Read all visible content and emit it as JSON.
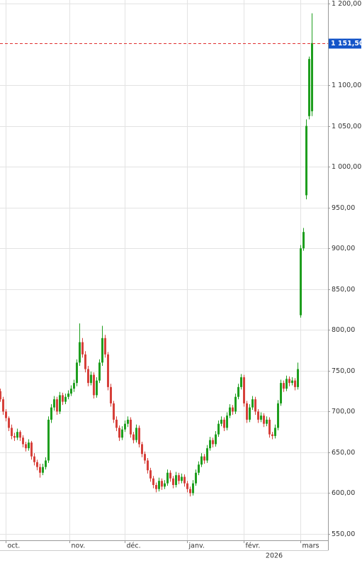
{
  "chart_data": {
    "type": "candlestick",
    "ylim": [
      542.2,
      1204.3
    ],
    "yticks": [
      {
        "value": 550,
        "label": "550,00"
      },
      {
        "value": 600,
        "label": "600,00"
      },
      {
        "value": 650,
        "label": "650,00"
      },
      {
        "value": 700,
        "label": "700,00"
      },
      {
        "value": 750,
        "label": "750,00"
      },
      {
        "value": 800,
        "label": "800,00"
      },
      {
        "value": 850,
        "label": "850,00"
      },
      {
        "value": 900,
        "label": "900,00"
      },
      {
        "value": 950,
        "label": "950,00"
      },
      {
        "value": 1000,
        "label": "1 000,00"
      },
      {
        "value": 1050,
        "label": "1 050,00"
      },
      {
        "value": 1100,
        "label": "1 100,00"
      },
      {
        "value": 1200,
        "label": "1 200,00"
      }
    ],
    "xlim": [
      0,
      115.75
    ],
    "xticks": [
      {
        "value": 2,
        "label": "oct."
      },
      {
        "value": 24.5,
        "label": "nov."
      },
      {
        "value": 44,
        "label": "déc."
      },
      {
        "value": 66,
        "label": "janv."
      },
      {
        "value": 86,
        "label": "févr."
      },
      {
        "value": 106,
        "label": "mars"
      }
    ],
    "year_label": "2026",
    "grid": true,
    "up_color": "#1e9e1e",
    "down_color": "#d6403a",
    "last_price": {
      "value": 1151.5,
      "label": "1 151,50"
    },
    "line_color": "#e03030",
    "label_color": "#1454c8",
    "x": [
      0,
      1,
      2,
      3,
      4,
      5,
      6,
      7,
      8,
      9,
      10,
      11,
      12,
      13,
      14,
      15,
      16,
      17,
      18,
      19,
      20,
      21,
      22,
      23,
      24,
      25,
      26,
      27,
      28,
      29,
      30,
      31,
      32,
      33,
      34,
      35,
      36,
      37,
      38,
      39,
      40,
      41,
      42,
      43,
      44,
      45,
      46,
      47,
      48,
      49,
      50,
      51,
      52,
      53,
      54,
      55,
      56,
      57,
      58,
      59,
      60,
      61,
      62,
      63,
      64,
      65,
      66,
      67,
      68,
      69,
      70,
      71,
      72,
      73,
      74,
      75,
      76,
      77,
      78,
      79,
      80,
      81,
      82,
      83,
      84,
      85,
      86,
      87,
      88,
      89,
      90,
      91,
      92,
      93,
      94,
      95,
      96,
      97,
      98,
      99,
      100,
      101,
      102,
      103,
      104,
      105,
      106,
      107,
      108,
      109,
      110
    ],
    "ohlc": [
      [
        725,
        728,
        712,
        715
      ],
      [
        715,
        718,
        696,
        700
      ],
      [
        700,
        703,
        688,
        692
      ],
      [
        692,
        694,
        676,
        680
      ],
      [
        680,
        684,
        666,
        670
      ],
      [
        670,
        674,
        664,
        668
      ],
      [
        668,
        679,
        665,
        675
      ],
      [
        675,
        677,
        664,
        668
      ],
      [
        668,
        671,
        656,
        660
      ],
      [
        660,
        663,
        651,
        655
      ],
      [
        655,
        666,
        652,
        662
      ],
      [
        662,
        664,
        641,
        645
      ],
      [
        645,
        649,
        634,
        638
      ],
      [
        638,
        641,
        628,
        632
      ],
      [
        632,
        636,
        619,
        625
      ],
      [
        625,
        636,
        622,
        632
      ],
      [
        632,
        644,
        629,
        640
      ],
      [
        640,
        694,
        637,
        690
      ],
      [
        690,
        709,
        686,
        705
      ],
      [
        705,
        719,
        701,
        715
      ],
      [
        715,
        718,
        696,
        700
      ],
      [
        700,
        724,
        697,
        720
      ],
      [
        720,
        723,
        708,
        712
      ],
      [
        712,
        722,
        709,
        718
      ],
      [
        718,
        726,
        715,
        722
      ],
      [
        722,
        732,
        719,
        728
      ],
      [
        728,
        739,
        724,
        735
      ],
      [
        735,
        764,
        731,
        760
      ],
      [
        760,
        808,
        756,
        785
      ],
      [
        785,
        790,
        766,
        770
      ],
      [
        770,
        774,
        748,
        752
      ],
      [
        752,
        756,
        731,
        735
      ],
      [
        735,
        749,
        732,
        745
      ],
      [
        745,
        748,
        716,
        720
      ],
      [
        720,
        742,
        717,
        738
      ],
      [
        738,
        764,
        735,
        760
      ],
      [
        760,
        805,
        756,
        790
      ],
      [
        790,
        794,
        766,
        770
      ],
      [
        770,
        773,
        726,
        730
      ],
      [
        730,
        734,
        706,
        710
      ],
      [
        710,
        713,
        686,
        690
      ],
      [
        690,
        694,
        676,
        680
      ],
      [
        680,
        683,
        664,
        668
      ],
      [
        668,
        682,
        665,
        678
      ],
      [
        678,
        689,
        675,
        685
      ],
      [
        685,
        694,
        681,
        690
      ],
      [
        690,
        693,
        668,
        672
      ],
      [
        672,
        675,
        661,
        665
      ],
      [
        665,
        684,
        662,
        680
      ],
      [
        680,
        683,
        656,
        660
      ],
      [
        660,
        663,
        644,
        648
      ],
      [
        648,
        651,
        636,
        640
      ],
      [
        640,
        643,
        624,
        628
      ],
      [
        628,
        631,
        614,
        618
      ],
      [
        618,
        621,
        606,
        610
      ],
      [
        610,
        613,
        601,
        605
      ],
      [
        605,
        619,
        602,
        615
      ],
      [
        615,
        618,
        604,
        608
      ],
      [
        608,
        616,
        605,
        612
      ],
      [
        612,
        629,
        609,
        625
      ],
      [
        625,
        628,
        614,
        618
      ],
      [
        618,
        621,
        606,
        610
      ],
      [
        610,
        626,
        607,
        622
      ],
      [
        622,
        625,
        611,
        615
      ],
      [
        615,
        624,
        612,
        620
      ],
      [
        620,
        623,
        608,
        612
      ],
      [
        612,
        615,
        601,
        605
      ],
      [
        605,
        608,
        596,
        600
      ],
      [
        600,
        616,
        597,
        612
      ],
      [
        612,
        629,
        609,
        625
      ],
      [
        625,
        639,
        622,
        635
      ],
      [
        635,
        649,
        632,
        645
      ],
      [
        645,
        648,
        636,
        640
      ],
      [
        640,
        659,
        637,
        655
      ],
      [
        655,
        669,
        652,
        665
      ],
      [
        665,
        668,
        656,
        660
      ],
      [
        660,
        676,
        657,
        672
      ],
      [
        672,
        689,
        669,
        685
      ],
      [
        685,
        694,
        682,
        690
      ],
      [
        690,
        693,
        676,
        680
      ],
      [
        680,
        699,
        677,
        695
      ],
      [
        695,
        709,
        692,
        705
      ],
      [
        705,
        708,
        696,
        700
      ],
      [
        700,
        722,
        697,
        718
      ],
      [
        718,
        734,
        715,
        730
      ],
      [
        730,
        746,
        727,
        742
      ],
      [
        742,
        745,
        706,
        710
      ],
      [
        710,
        713,
        686,
        690
      ],
      [
        690,
        709,
        687,
        705
      ],
      [
        705,
        719,
        702,
        715
      ],
      [
        715,
        718,
        696,
        700
      ],
      [
        700,
        703,
        686,
        690
      ],
      [
        690,
        699,
        687,
        695
      ],
      [
        695,
        698,
        681,
        685
      ],
      [
        685,
        694,
        682,
        690
      ],
      [
        690,
        693,
        668,
        672
      ],
      [
        672,
        675,
        666,
        670
      ],
      [
        670,
        684,
        667,
        680
      ],
      [
        680,
        714,
        677,
        710
      ],
      [
        710,
        739,
        707,
        735
      ],
      [
        735,
        738,
        724,
        728
      ],
      [
        728,
        744,
        725,
        740
      ],
      [
        740,
        743,
        731,
        735
      ],
      [
        735,
        742,
        732,
        738
      ],
      [
        738,
        741,
        726,
        730
      ],
      [
        730,
        760,
        727,
        752
      ],
      [
        818,
        904,
        815,
        900
      ],
      [
        900,
        925,
        897,
        920
      ],
      [
        965,
        1058,
        960,
        1050
      ],
      [
        1062,
        1135,
        1058,
        1132
      ],
      [
        1068,
        1188,
        1062,
        1151.5
      ]
    ]
  }
}
